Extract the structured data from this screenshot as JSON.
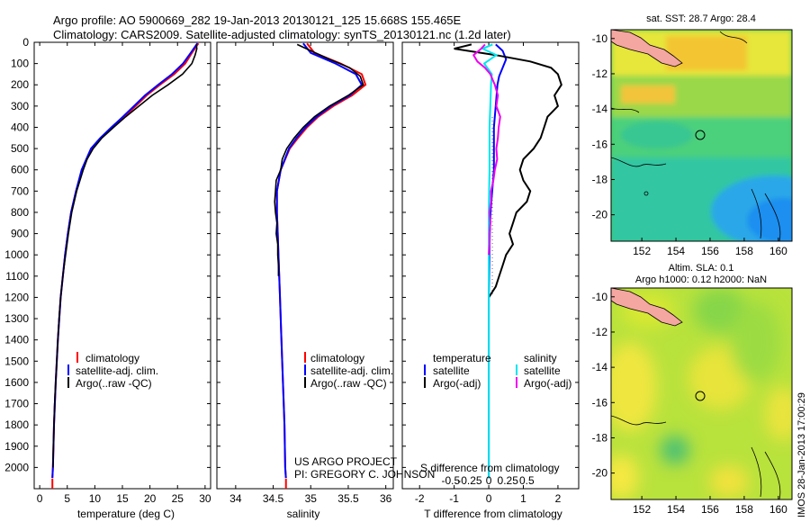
{
  "header": {
    "line1": "Argo profile: AO 5900669_282 19-Jan-2013 20130121_125 15.668S 155.465E",
    "line2": "Climatology: CARS2009. Satellite-adjusted climatology: synTS_20130121.nc (1.2d later)"
  },
  "credits": {
    "project": "US ARGO PROJECT",
    "pi": "PI: GREGORY C. JOHNSON",
    "timestamp": "IMOS 28-Jan-2013 17:00:29"
  },
  "colors": {
    "climatology": "#ff0000",
    "satellite": "#0000ff",
    "argo": "#000000",
    "sal_satellite": "#00e5ee",
    "sal_argo": "#ee00ee",
    "land": "#f4a6a0"
  },
  "map_titles": {
    "sst": "sat. SST: 28.7 Argo: 28.4",
    "sla1": "Altim. SLA: 0.1",
    "sla2": "Argo h1000: 0.12 h2000: NaN"
  },
  "chart_data": [
    {
      "id": "temperature",
      "type": "line",
      "xlabel": "temperature (deg C)",
      "ylabel": "",
      "xlim": [
        -1,
        31
      ],
      "ylim": [
        2100,
        0
      ],
      "xticks": [
        0,
        5,
        10,
        15,
        20,
        25,
        30
      ],
      "yticks": [
        0,
        100,
        200,
        300,
        400,
        500,
        600,
        700,
        800,
        900,
        1000,
        1100,
        1200,
        1300,
        1400,
        1500,
        1600,
        1700,
        1800,
        1900,
        2000
      ],
      "legend": [
        "climatology",
        "satellite-adj. clim.",
        "Argo(..raw -QC)"
      ],
      "series": [
        {
          "name": "climatology",
          "color": "#ff0000",
          "depth": [
            5,
            50,
            100,
            150,
            200,
            250,
            300,
            350,
            400,
            450,
            500,
            600,
            700,
            800,
            900,
            1000,
            1200,
            1400,
            1600,
            1800,
            2000,
            2050
          ],
          "values": [
            28.8,
            27.6,
            26.4,
            24.4,
            21.8,
            19.4,
            17.4,
            15.3,
            13.2,
            11.1,
            9.4,
            7.7,
            6.6,
            5.7,
            5.1,
            4.6,
            3.8,
            3.3,
            2.9,
            2.6,
            2.4,
            2.3
          ]
        },
        {
          "name": "satellite-adj. clim.",
          "color": "#0000ff",
          "depth": [
            5,
            50,
            100,
            150,
            200,
            250,
            300,
            350,
            400,
            450,
            500,
            600,
            700,
            800,
            900,
            1000,
            1200,
            1400,
            1600,
            1800,
            2000,
            2050
          ],
          "values": [
            28.6,
            27.4,
            26.0,
            24.0,
            21.5,
            19.1,
            17.1,
            15.1,
            13.0,
            11.0,
            9.3,
            7.6,
            6.6,
            5.7,
            5.1,
            4.6,
            3.8,
            3.3,
            2.9,
            2.6,
            2.4,
            2.3
          ]
        },
        {
          "name": "Argo(..raw -QC)",
          "color": "#000000",
          "depth": [
            10,
            30,
            60,
            100,
            150,
            200,
            250,
            300,
            350,
            400,
            450,
            500,
            550,
            600,
            700,
            800,
            900,
            1000,
            1100,
            1200,
            1300,
            1400,
            1500,
            1600,
            1700,
            1800,
            1900,
            2000
          ],
          "values": [
            28.4,
            28.5,
            28.2,
            27.6,
            25.9,
            23.3,
            20.4,
            18.0,
            15.6,
            13.4,
            11.3,
            9.7,
            8.6,
            7.9,
            6.7,
            5.8,
            5.2,
            4.7,
            4.2,
            3.8,
            3.5,
            3.3,
            3.1,
            2.9,
            2.7,
            2.6,
            2.5,
            2.4
          ]
        }
      ]
    },
    {
      "id": "salinity",
      "type": "line",
      "xlabel": "salinity",
      "xlim": [
        33.75,
        36.1
      ],
      "ylim": [
        2100,
        0
      ],
      "xticks": [
        34,
        34.5,
        35,
        35.5,
        36
      ],
      "legend": [
        "climatology",
        "satellite-adj. clim.",
        "Argo(..raw -QC)"
      ],
      "series": [
        {
          "name": "climatology",
          "color": "#ff0000",
          "depth": [
            5,
            50,
            100,
            150,
            200,
            250,
            300,
            350,
            400,
            450,
            500,
            600,
            700,
            800,
            900,
            1000,
            1200,
            1400,
            1600,
            1800,
            2000,
            2050
          ],
          "values": [
            34.95,
            35.05,
            35.4,
            35.68,
            35.73,
            35.55,
            35.3,
            35.1,
            34.95,
            34.83,
            34.72,
            34.6,
            34.55,
            34.55,
            34.56,
            34.57,
            34.59,
            34.61,
            34.63,
            34.65,
            34.66,
            34.67
          ]
        },
        {
          "name": "satellite-adj. clim.",
          "color": "#0000ff",
          "depth": [
            5,
            50,
            100,
            150,
            200,
            250,
            300,
            350,
            400,
            450,
            500,
            600,
            700,
            800,
            900,
            1000,
            1200,
            1400,
            1600,
            1800,
            2000,
            2050
          ],
          "values": [
            34.9,
            35.0,
            35.33,
            35.6,
            35.68,
            35.52,
            35.27,
            35.08,
            34.93,
            34.81,
            34.71,
            34.6,
            34.55,
            34.55,
            34.56,
            34.57,
            34.59,
            34.61,
            34.63,
            34.65,
            34.66,
            34.67
          ]
        },
        {
          "name": "Argo(..raw -QC)",
          "color": "#000000",
          "depth": [
            10,
            40,
            80,
            120,
            160,
            200,
            250,
            300,
            350,
            400,
            450,
            500,
            550,
            600,
            650,
            700,
            750,
            800,
            850,
            900,
            950,
            1000,
            1050,
            1100
          ],
          "values": [
            34.82,
            35.0,
            35.25,
            35.52,
            35.66,
            35.7,
            35.5,
            35.25,
            35.05,
            34.9,
            34.78,
            34.68,
            34.62,
            34.6,
            34.54,
            34.53,
            34.52,
            34.53,
            34.55,
            34.54,
            34.56,
            34.56,
            34.57,
            34.57
          ]
        }
      ]
    },
    {
      "id": "difference",
      "type": "line",
      "xlabel": "T difference from climatology",
      "xlabel2": "S difference from climatology",
      "xlim": [
        -2.5,
        2.6
      ],
      "ylim": [
        2100,
        0
      ],
      "xticks": [
        -2,
        -1,
        0,
        1,
        2
      ],
      "xticks2": [
        -0.5,
        -0.25,
        0,
        0.25,
        0.5
      ],
      "xticklabels2": [
        "-0.5",
        "-0.25",
        "0",
        "0.25",
        "0.5"
      ],
      "legend_temperature_title": "temperature",
      "legend_salinity_title": "salinity",
      "legend": [
        "satellite",
        "Argo(-adj)",
        "satellite",
        "Argo(-adj)"
      ],
      "series": [
        {
          "name": "T satellite",
          "color": "#0000ff",
          "depth": [
            10,
            40,
            80,
            120,
            160,
            200,
            300,
            400,
            500,
            600,
            700,
            800,
            900,
            1000,
            1100,
            1200,
            2050
          ],
          "values": [
            0.2,
            0.4,
            0.5,
            0.4,
            0.3,
            0.25,
            0.2,
            0.15,
            0.15,
            0.15,
            0.1,
            0.05,
            0.03,
            0.02,
            0.01,
            0.0,
            0.0
          ]
        },
        {
          "name": "T Argo(-adj)",
          "color": "#000000",
          "depth": [
            10,
            30,
            60,
            90,
            120,
            150,
            200,
            250,
            300,
            350,
            400,
            450,
            500,
            550,
            600,
            650,
            700,
            750,
            800,
            850,
            900,
            950,
            1000,
            1050,
            1100,
            1150,
            1200
          ],
          "values": [
            -0.5,
            -1.0,
            0.2,
            1.2,
            1.8,
            2.0,
            2.1,
            1.9,
            2.0,
            1.7,
            1.6,
            1.5,
            1.3,
            1.0,
            0.9,
            1.0,
            1.2,
            1.1,
            0.8,
            0.7,
            0.6,
            0.7,
            0.5,
            0.4,
            0.3,
            0.2,
            0.0
          ]
        },
        {
          "name": "S satellite",
          "color": "#00e5ee",
          "depth": [
            10,
            30,
            60,
            100,
            150,
            200,
            300,
            400,
            500,
            600,
            800,
            1000,
            1200,
            2050
          ],
          "values": [
            0.05,
            -0.08,
            0.1,
            -0.06,
            0.04,
            0.03,
            0.02,
            0.01,
            0.01,
            0.01,
            0.0,
            0.0,
            0.0,
            0.0
          ]
        },
        {
          "name": "S Argo(-adj)",
          "color": "#ee00ee",
          "depth": [
            10,
            30,
            60,
            90,
            120,
            150,
            200,
            250,
            300,
            350,
            400,
            450,
            500,
            550,
            600,
            650,
            700,
            750,
            800,
            850,
            900,
            950,
            1000
          ],
          "values": [
            -0.05,
            -0.1,
            -0.2,
            -0.15,
            -0.05,
            0.02,
            0.08,
            0.12,
            0.1,
            0.15,
            0.13,
            0.12,
            0.1,
            0.11,
            0.08,
            0.06,
            0.03,
            0.03,
            0.01,
            0.02,
            0.01,
            0.01,
            0.0
          ]
        }
      ]
    },
    {
      "id": "sst_map",
      "type": "heatmap",
      "title": "sat. SST: 28.7 Argo: 28.4",
      "xlim": [
        150.2,
        160.8
      ],
      "ylim": [
        -21.5,
        -9.5
      ],
      "xticks": [
        152,
        154,
        156,
        158,
        160
      ],
      "yticks": [
        -10,
        -12,
        -14,
        -16,
        -18,
        -20
      ],
      "argo_position": [
        155.465,
        -15.668
      ]
    },
    {
      "id": "sla_map",
      "type": "heatmap",
      "title": "Altim. SLA: 0.1",
      "title2": "Argo h1000: 0.12 h2000: NaN",
      "xlim": [
        150.2,
        160.8
      ],
      "ylim": [
        -21.5,
        -9.5
      ],
      "xticks": [
        152,
        154,
        156,
        158,
        160
      ],
      "yticks": [
        -10,
        -12,
        -14,
        -16,
        -18,
        -20
      ],
      "argo_position": [
        155.465,
        -15.668
      ]
    }
  ]
}
